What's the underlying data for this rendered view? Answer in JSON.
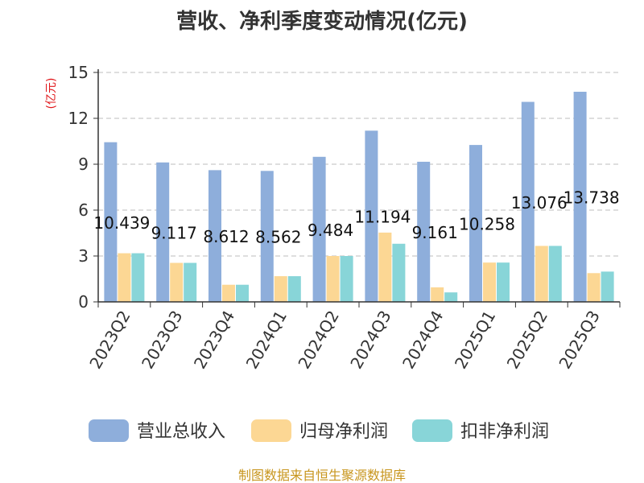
{
  "chart_data": {
    "type": "bar",
    "title": "营收、净利季度变动情况(亿元)",
    "ylabel": "(亿元)",
    "ylim": [
      0,
      15
    ],
    "yticks": [
      0,
      3,
      6,
      9,
      12,
      15
    ],
    "grid": true,
    "legend_position": "bottom",
    "categories": [
      "2023Q2",
      "2023Q3",
      "2023Q4",
      "2024Q1",
      "2024Q2",
      "2024Q3",
      "2024Q4",
      "2025Q1",
      "2025Q2",
      "2025Q3"
    ],
    "series": [
      {
        "name": "营业总收入",
        "color": "#8eaedb",
        "values": [
          10.439,
          9.117,
          8.612,
          8.562,
          9.484,
          11.194,
          9.161,
          10.258,
          13.076,
          13.738
        ],
        "labels": [
          "10.439",
          "9.117",
          "8.612",
          "8.562",
          "9.484",
          "11.194",
          "9.161",
          "10.258",
          "13.076",
          "13.738"
        ]
      },
      {
        "name": "归母净利润",
        "color": "#fcd794",
        "values": [
          3.18,
          2.55,
          1.12,
          1.68,
          3.0,
          4.53,
          0.95,
          2.57,
          3.66,
          1.88
        ]
      },
      {
        "name": "扣非净利润",
        "color": "#88d5d8",
        "values": [
          3.18,
          2.55,
          1.12,
          1.68,
          3.0,
          3.8,
          0.62,
          2.57,
          3.66,
          1.98
        ]
      }
    ],
    "source": "制图数据来自恒生聚源数据库"
  }
}
